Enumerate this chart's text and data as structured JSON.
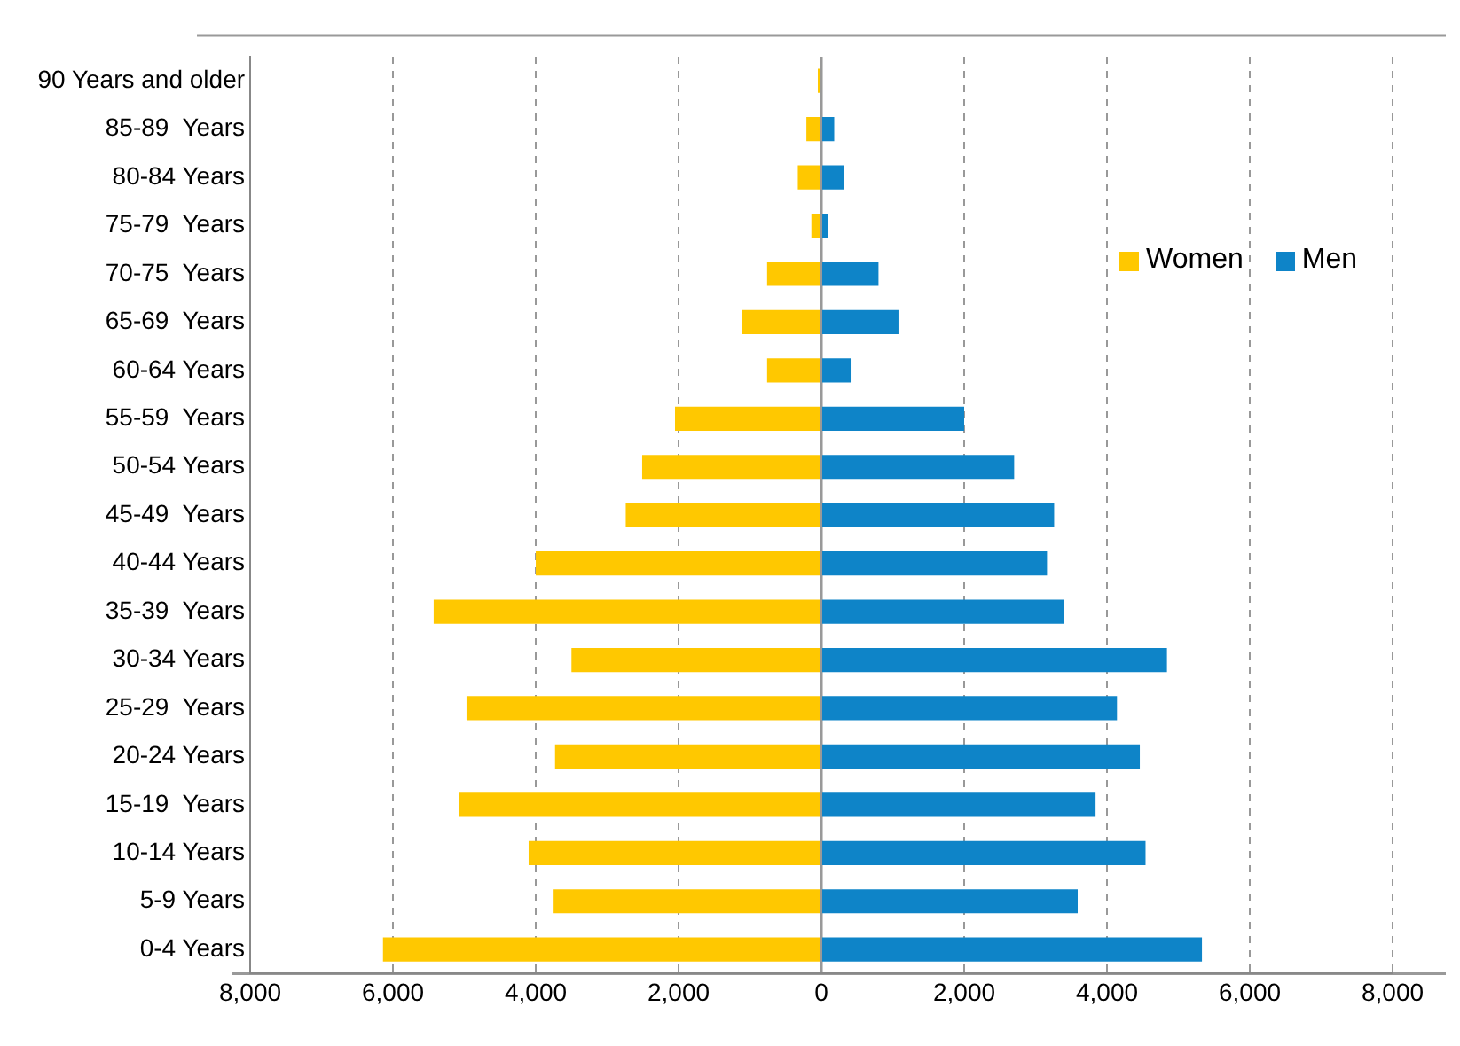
{
  "chart_data": {
    "type": "bar",
    "orientation": "horizontal",
    "stacked": true,
    "categories": [
      "90 Years and older",
      "85-89  Years",
      "80-84 Years",
      "75-79  Years",
      "70-75  Years",
      "65-69  Years",
      "60-64 Years",
      "55-59  Years",
      "50-54 Years",
      "45-49  Years",
      "40-44 Years",
      "35-39  Years",
      "30-34 Years",
      "25-29  Years",
      "20-24 Years",
      "15-19  Years",
      "10-14 Years",
      "5-9 Years",
      "0-4 Years"
    ],
    "series": [
      {
        "name": "Women",
        "color": "#ffc800",
        "values": [
          -50,
          -210,
          -330,
          -140,
          -760,
          -1110,
          -760,
          -2050,
          -2510,
          -2740,
          -4000,
          -5430,
          -3500,
          -4970,
          -3730,
          -5080,
          -4100,
          -3750,
          -6140
        ]
      },
      {
        "name": "Men",
        "color": "#0e84c8",
        "values": [
          0,
          180,
          320,
          90,
          800,
          1080,
          410,
          2000,
          2700,
          3260,
          3160,
          3400,
          4840,
          4140,
          4460,
          3840,
          4540,
          3590,
          5330
        ]
      }
    ],
    "xlim": [
      -8000,
      8000
    ],
    "xticks": [
      {
        "value": -8000,
        "label": "8,000"
      },
      {
        "value": -6000,
        "label": "6,000"
      },
      {
        "value": -4000,
        "label": "4,000"
      },
      {
        "value": -2000,
        "label": "2,000"
      },
      0,
      {
        "value": 2000,
        "label": "2,000"
      },
      {
        "value": 4000,
        "label": "4,000"
      },
      {
        "value": 6000,
        "label": "6,000"
      },
      {
        "value": 8000,
        "label": "8,000"
      }
    ],
    "grid": "x",
    "legend": "top right"
  }
}
